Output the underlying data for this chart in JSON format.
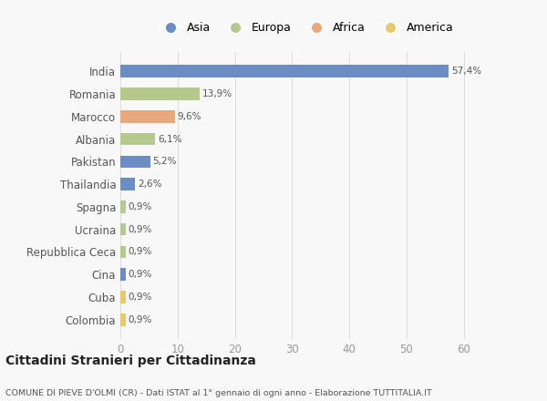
{
  "categories": [
    "India",
    "Romania",
    "Marocco",
    "Albania",
    "Pakistan",
    "Thailandia",
    "Spagna",
    "Ucraina",
    "Repubblica Ceca",
    "Cina",
    "Cuba",
    "Colombia"
  ],
  "values": [
    57.4,
    13.9,
    9.6,
    6.1,
    5.2,
    2.6,
    0.9,
    0.9,
    0.9,
    0.9,
    0.9,
    0.9
  ],
  "labels": [
    "57,4%",
    "13,9%",
    "9,6%",
    "6,1%",
    "5,2%",
    "2,6%",
    "0,9%",
    "0,9%",
    "0,9%",
    "0,9%",
    "0,9%",
    "0,9%"
  ],
  "colors": [
    "#6b8dc4",
    "#b5c98e",
    "#e8a87c",
    "#b5c98e",
    "#6b8dc4",
    "#6b8dc4",
    "#b5c98e",
    "#b5c98e",
    "#b5c98e",
    "#6b8dc4",
    "#e8c96b",
    "#e8c96b"
  ],
  "legend_labels": [
    "Asia",
    "Europa",
    "Africa",
    "America"
  ],
  "legend_colors": [
    "#6b8dc4",
    "#b5c98e",
    "#e8a87c",
    "#e8c96b"
  ],
  "title": "Cittadini Stranieri per Cittadinanza",
  "subtitle": "COMUNE DI PIEVE D'OLMI (CR) - Dati ISTAT al 1° gennaio di ogni anno - Elaborazione TUTTITALIA.IT",
  "xlim": [
    0,
    65
  ],
  "xticks": [
    0,
    10,
    20,
    30,
    40,
    50,
    60
  ],
  "background_color": "#f8f8f8",
  "grid_color": "#dddddd"
}
